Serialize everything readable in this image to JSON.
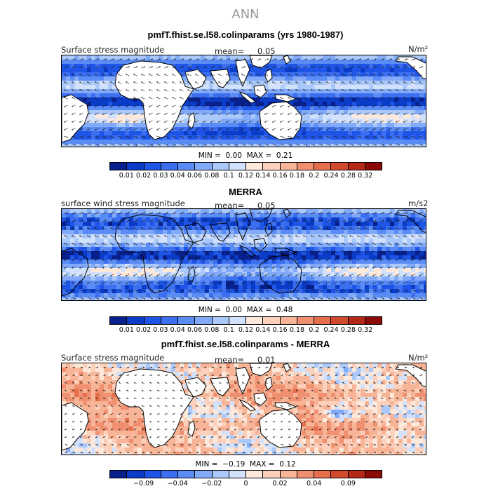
{
  "season": "ANN",
  "land_color": "#ffffff",
  "panels": [
    {
      "title": "pmfT.fhist.se.l58.colinparams (yrs 1980-1987)",
      "left_label": "Surface stress magnitude",
      "mean_label": "mean=",
      "mean_value": "0.05",
      "units": "N/m²",
      "min_label": "MIN =",
      "min_value": "0.00",
      "max_label": "MAX =",
      "max_value": "0.21",
      "field": "model"
    },
    {
      "title": "MERRA",
      "left_label": "surface wind stress magnitude",
      "mean_label": "mean=",
      "mean_value": "0.05",
      "units": "m/s2",
      "min_label": "MIN =",
      "min_value": "0.00",
      "max_label": "MAX =",
      "max_value": "0.48",
      "field": "obs"
    },
    {
      "title": "pmfT.fhist.se.l58.colinparams - MERRA",
      "left_label": "Surface stress magnitude",
      "mean_label": "mean=",
      "mean_value": "0.01",
      "units": "N/m²",
      "min_label": "MIN =",
      "min_value": "−0.19",
      "max_label": "MAX =",
      "max_value": "0.12",
      "field": "diff"
    }
  ],
  "colorbar_abs": {
    "colors": [
      "#08208c",
      "#0a3cc8",
      "#1e55e6",
      "#3c6ef0",
      "#5a8cf5",
      "#82aaf8",
      "#aac8fa",
      "#d2e1fc",
      "#fde8dc",
      "#fcd0ba",
      "#f8b496",
      "#f09070",
      "#e66e4c",
      "#d24a2d",
      "#b42818",
      "#8c0a05"
    ],
    "tick_labels": [
      "0.01",
      "0.02",
      "0.03",
      "0.04",
      "0.06",
      "0.08",
      "0.1",
      "0.12",
      "0.14",
      "0.16",
      "0.18",
      "0.2",
      "0.24",
      "0.28",
      "0.32"
    ]
  },
  "colorbar_diff": {
    "colors": [
      "#08208c",
      "#0a3cc8",
      "#1e55e6",
      "#3c6ef0",
      "#5a8cf5",
      "#82aaf8",
      "#aac8fa",
      "#d2e1fc",
      "#fde8dc",
      "#fcd0ba",
      "#f8b496",
      "#f09070",
      "#e66e4c",
      "#d24a2d",
      "#b42818",
      "#8c0a05"
    ],
    "tick_labels": [
      "−0.09",
      "−0.04",
      "−0.02",
      "0",
      "0.02",
      "0.04",
      "0.09"
    ],
    "tick_positions": [
      2,
      4,
      6,
      8,
      10,
      12,
      14
    ]
  }
}
